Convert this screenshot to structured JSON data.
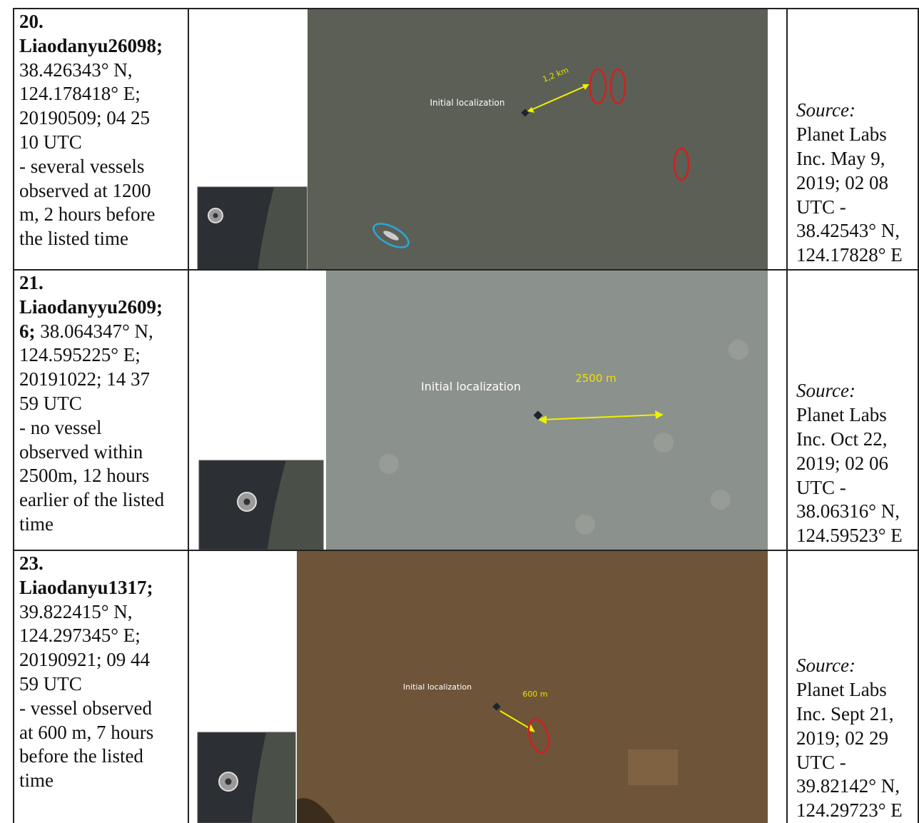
{
  "table": {
    "rows": [
      {
        "lines": [
          [
            {
              "text": "20.",
              "bold": true
            }
          ],
          [
            {
              "text": "Liaodanyu26098;",
              "bold": true
            }
          ],
          [
            {
              "text": "38.426343° N,"
            }
          ],
          [
            {
              "text": "124.178418° E;"
            }
          ],
          [
            {
              "text": "20190509; 04 25"
            }
          ],
          [
            {
              "text": "10 UTC"
            }
          ],
          [
            {
              "text": "- several vessels"
            }
          ],
          [
            {
              "text": "observed at 1200"
            }
          ],
          [
            {
              "text": "m, 2 hours before"
            }
          ],
          [
            {
              "text": "the listed time"
            }
          ]
        ],
        "image": {
          "labels": [
            "Initial localization",
            "1,2 km"
          ]
        },
        "source": {
          "label": "Source:",
          "lines": [
            "Planet Labs",
            "Inc. May 9,",
            "2019; 02 08",
            "UTC -",
            "38.42543° N,",
            "124.17828° E"
          ]
        }
      },
      {
        "lines": [
          [
            {
              "text": "21.",
              "bold": true
            }
          ],
          [
            {
              "text": "Liaodanyyu2609;",
              "bold": true
            }
          ],
          [
            {
              "text": "6;",
              "bold": true
            },
            {
              "text": " 38.064347° N,"
            }
          ],
          [
            {
              "text": "124.595225° E;"
            }
          ],
          [
            {
              "text": "20191022; 14 37"
            }
          ],
          [
            {
              "text": "59 UTC"
            }
          ],
          [
            {
              "text": "- no vessel"
            }
          ],
          [
            {
              "text": "observed within"
            }
          ],
          [
            {
              "text": "2500m, 12 hours"
            }
          ],
          [
            {
              "text": "earlier of the listed"
            }
          ],
          [
            {
              "text": "time"
            }
          ]
        ],
        "image": {
          "labels": [
            "Initial localization",
            "2500 m"
          ]
        },
        "source": {
          "label": "Source:",
          "lines": [
            "Planet Labs",
            "Inc. Oct 22,",
            "2019; 02 06",
            "UTC -",
            "38.06316° N,",
            "124.59523° E"
          ]
        }
      },
      {
        "lines": [
          [
            {
              "text": "23.",
              "bold": true
            }
          ],
          [
            {
              "text": "Liaodanyu1317;",
              "bold": true
            }
          ],
          [
            {
              "text": "39.822415° N,"
            }
          ],
          [
            {
              "text": "124.297345° E;"
            }
          ],
          [
            {
              "text": "20190921; 09 44"
            }
          ],
          [
            {
              "text": "59 UTC"
            }
          ],
          [
            {
              "text": "- vessel observed"
            }
          ],
          [
            {
              "text": "at 600 m, 7 hours"
            }
          ],
          [
            {
              "text": "before the listed"
            }
          ],
          [
            {
              "text": "time"
            }
          ]
        ],
        "image": {
          "labels": [
            "Initial localization",
            "600 m"
          ]
        },
        "source": {
          "label": "Source:",
          "lines": [
            "Planet Labs",
            "Inc. Sept 21,",
            "2019; 02 29",
            "UTC -",
            "39.82142° N,",
            "124.29723° E"
          ]
        }
      }
    ]
  }
}
